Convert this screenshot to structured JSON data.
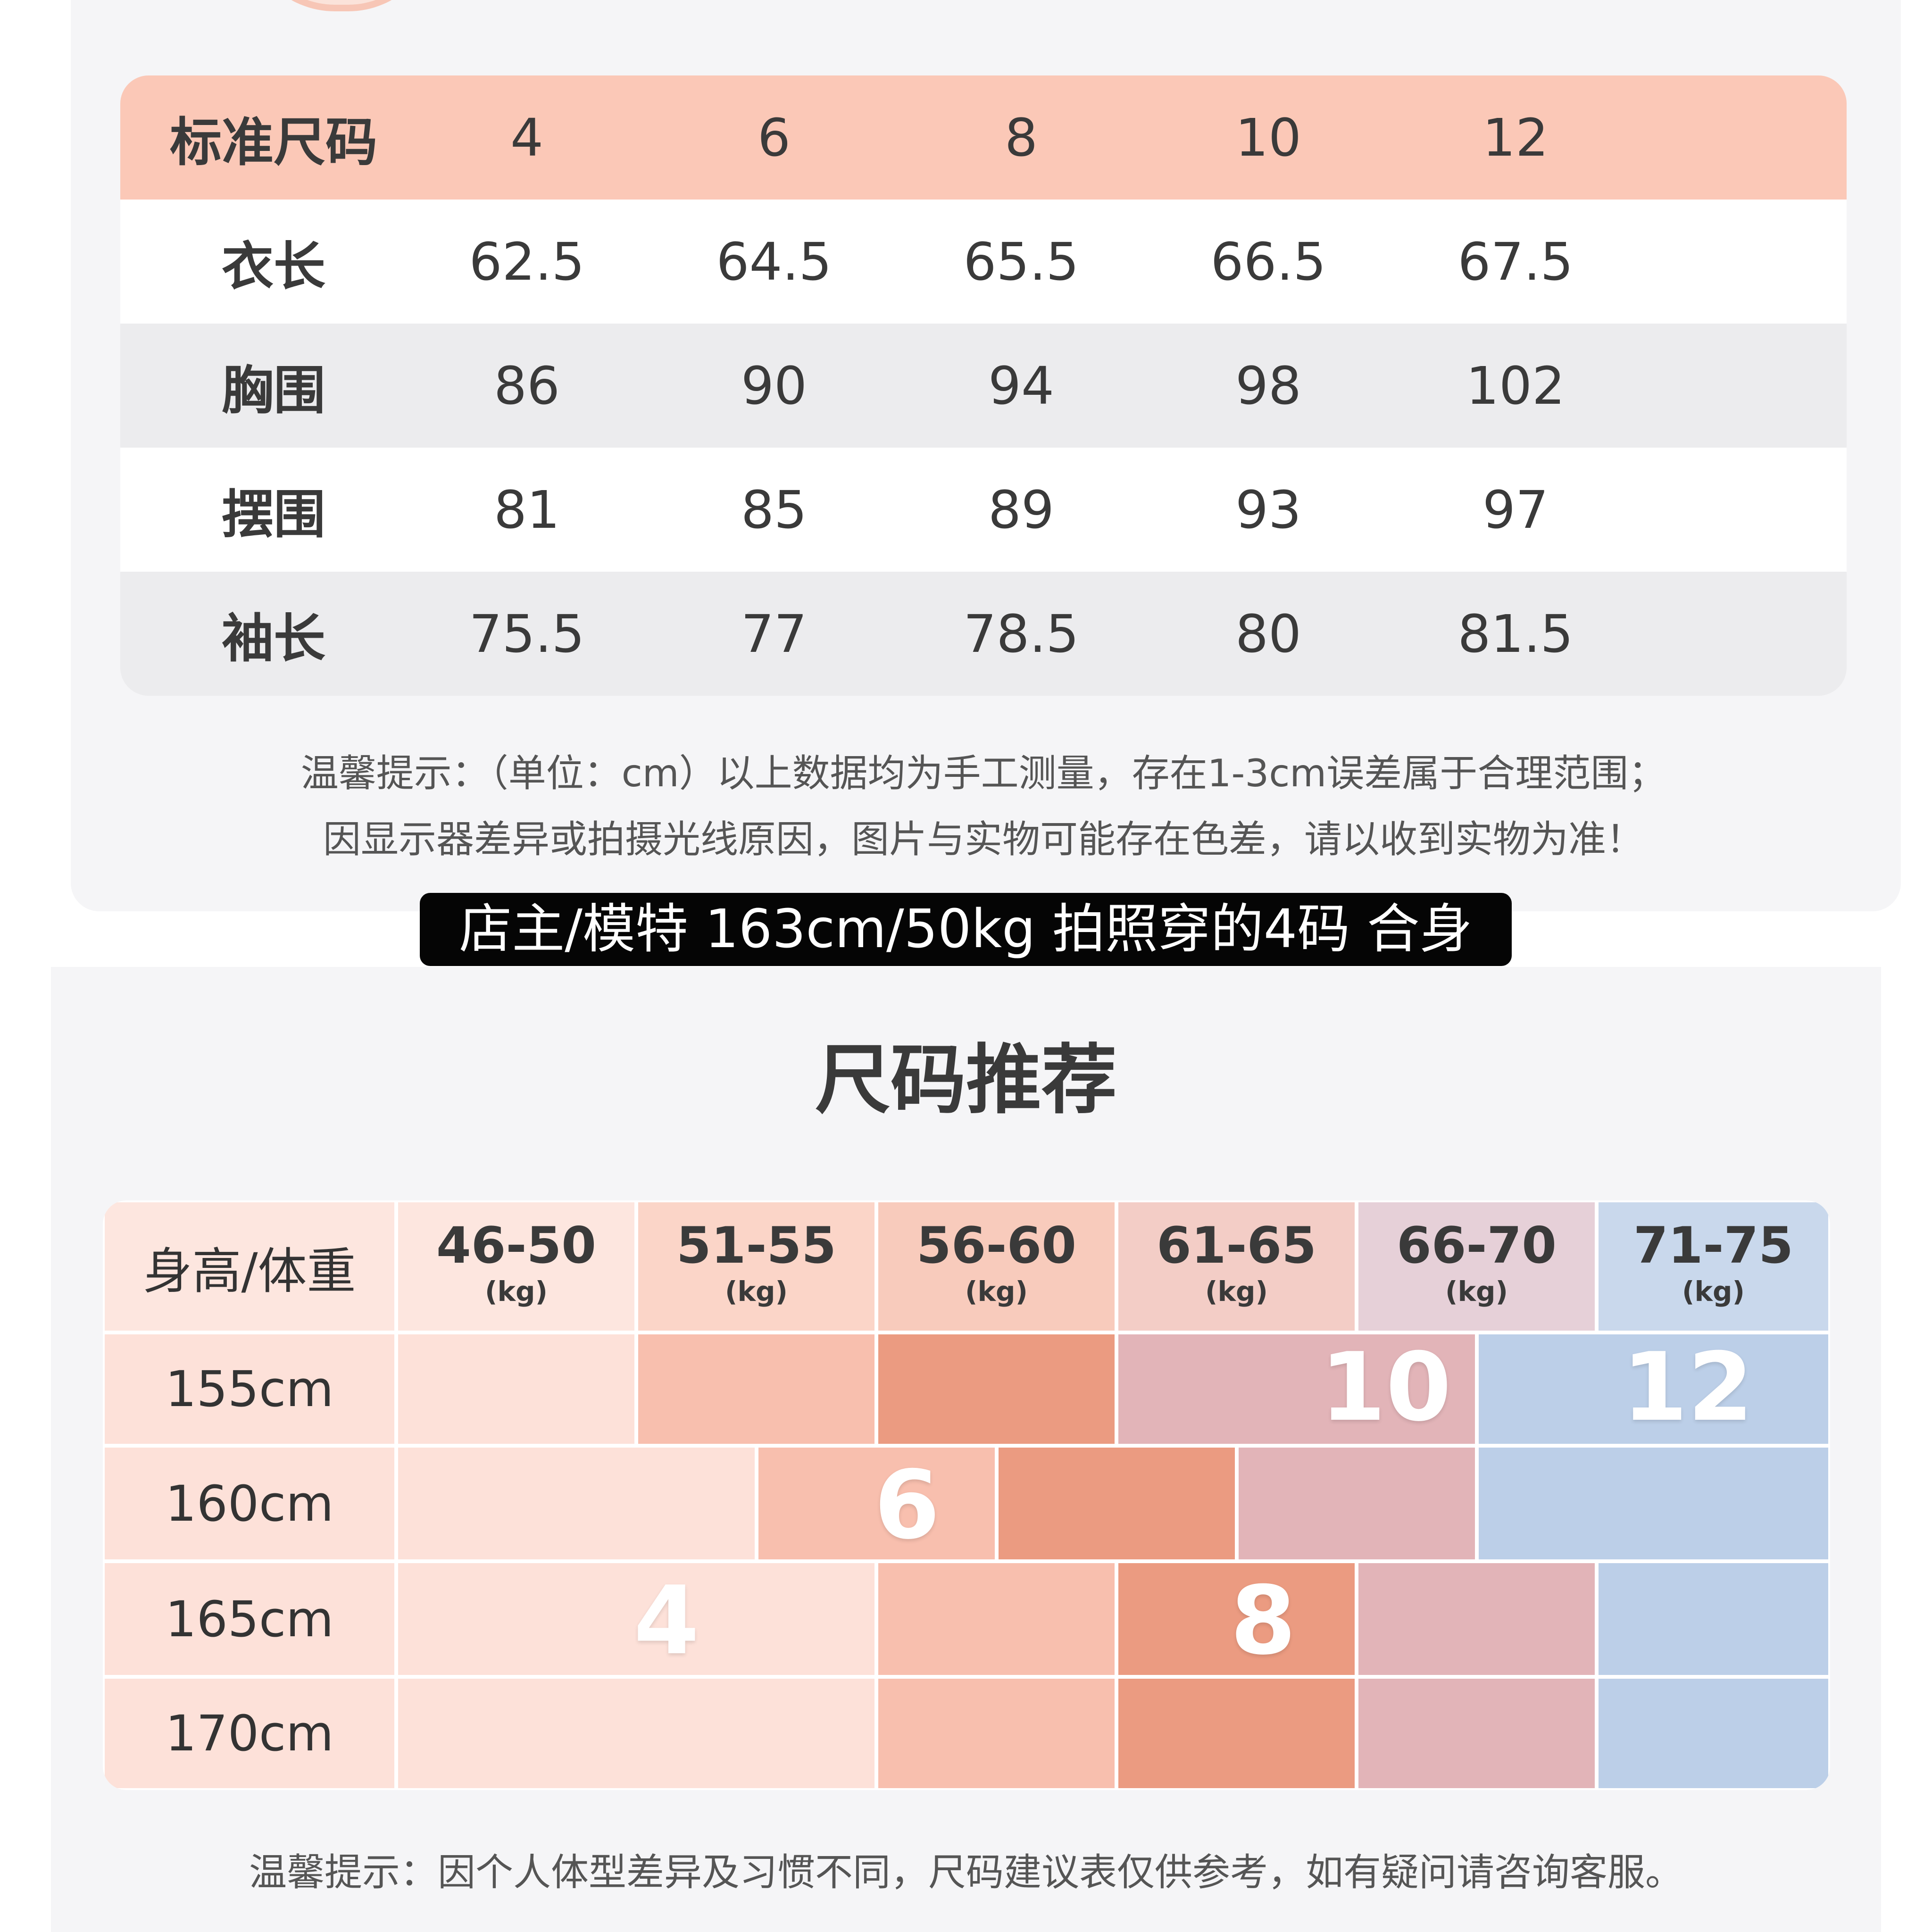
{
  "spec_table": {
    "header": [
      "标准尺码",
      "4",
      "6",
      "8",
      "10",
      "12"
    ],
    "rows": [
      [
        "衣长",
        "62.5",
        "64.5",
        "65.5",
        "66.5",
        "67.5"
      ],
      [
        "胸围",
        "86",
        "90",
        "94",
        "98",
        "102"
      ],
      [
        "摆围",
        "81",
        "85",
        "89",
        "93",
        "97"
      ],
      [
        "袖长",
        "75.5",
        "77",
        "78.5",
        "80",
        "81.5"
      ]
    ]
  },
  "note_top": {
    "line1": "温馨提示：（单位：cm）以上数据均为手工测量，存在1-3cm误差属于合理范围；",
    "line2": "因显示器差异或拍摄光线原因，图片与实物可能存在色差，请以收到实物为准！"
  },
  "caption": "店主/模特 163cm/50kg 拍照穿的4码 合身",
  "recommend": {
    "title": "尺码推荐",
    "corner_label": "身高/体重",
    "weights": [
      "46-50",
      "51-55",
      "56-60",
      "61-65",
      "66-70",
      "71-75"
    ],
    "weight_unit": "(kg)",
    "heights": [
      "155cm",
      "160cm",
      "165cm",
      "170cm"
    ],
    "size_labels": {
      "s4": "4",
      "s6": "6",
      "s8": "8",
      "s10": "10",
      "s12": "12"
    },
    "colors": {
      "size4": "#fde1d9",
      "size6": "#f8bfae",
      "size8": "#eb9b81",
      "size10": "#e2b4b8",
      "size12": "#bccfe8"
    }
  },
  "note_bottom": "温馨提示：因个人体型差异及习惯不同，尺码建议表仅供参考，如有疑问请咨询客服。"
}
